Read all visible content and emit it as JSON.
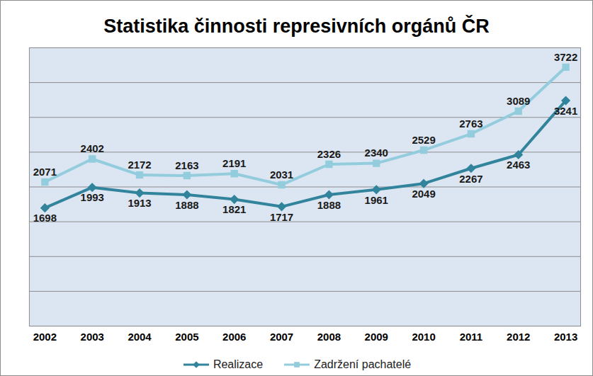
{
  "chart_data": {
    "type": "line",
    "title": "Statistika činnosti represivních orgánů ČR",
    "categories": [
      "2002",
      "2003",
      "2004",
      "2005",
      "2006",
      "2007",
      "2008",
      "2009",
      "2010",
      "2011",
      "2012",
      "2013"
    ],
    "series": [
      {
        "name": "Realizace",
        "color": "#31849b",
        "marker": "diamond",
        "values": [
          1698,
          1993,
          1913,
          1888,
          1821,
          1717,
          1888,
          1961,
          2049,
          2267,
          2463,
          3241
        ]
      },
      {
        "name": "Zadržení pachatelé",
        "color": "#93cddd",
        "marker": "square",
        "values": [
          2071,
          2402,
          2172,
          2163,
          2191,
          2031,
          2326,
          2340,
          2529,
          2763,
          3089,
          3722
        ]
      }
    ],
    "ylim": [
      0,
      4000
    ],
    "yticks": [
      0,
      500,
      1000,
      1500,
      2000,
      2500,
      3000,
      3500,
      4000
    ],
    "grid": true,
    "tick_labels": "x",
    "data_labels": true,
    "legend": "bottom"
  }
}
